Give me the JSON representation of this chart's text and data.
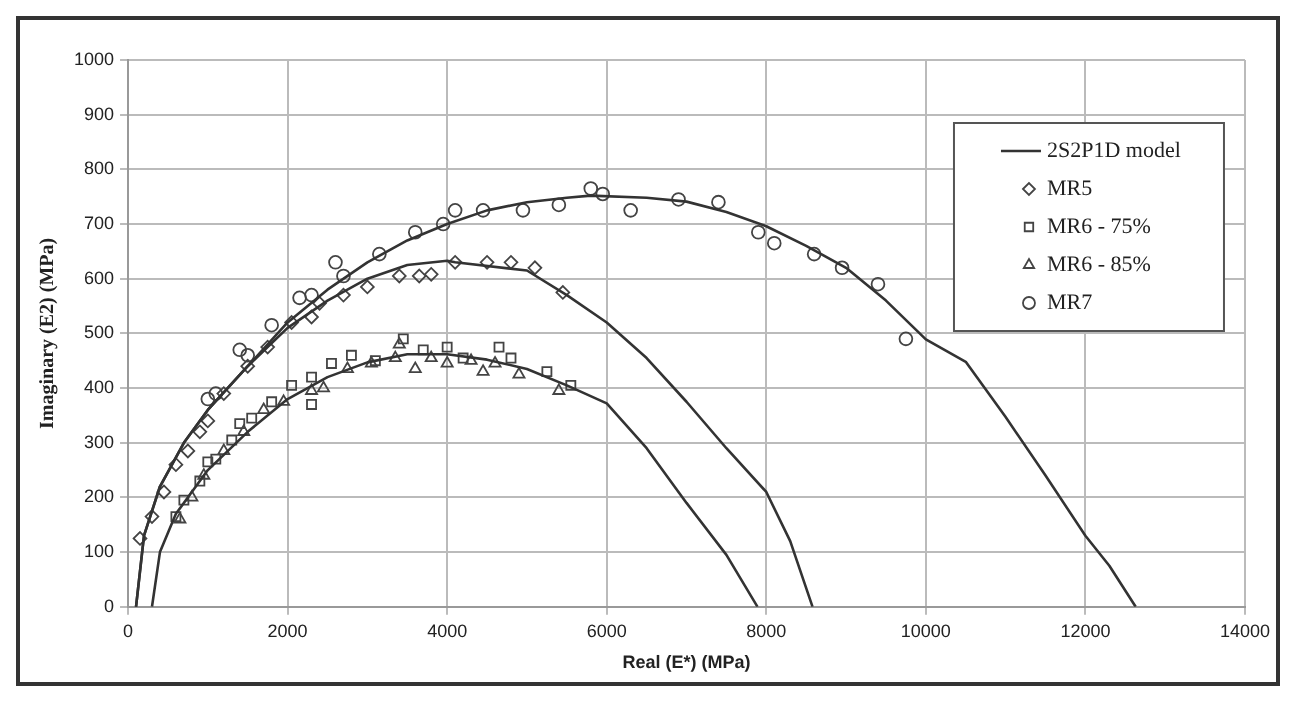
{
  "chart_data": {
    "type": "line",
    "xlabel": "Real (E*) (MPa)",
    "ylabel": "Imaginary (E2) (MPa)",
    "xlim": [
      0,
      14000
    ],
    "xticks": [
      0,
      2000,
      4000,
      6000,
      8000,
      10000,
      12000,
      14000
    ],
    "ylim": [
      0,
      1000
    ],
    "yticks": [
      0,
      100,
      200,
      300,
      400,
      500,
      600,
      700,
      800,
      900,
      1000
    ],
    "grid": true,
    "legend": "top right",
    "series": [
      {
        "name": "2S2P1D model",
        "type": "line",
        "color": "#333333",
        "marker": "none",
        "x": [
          100,
          200,
          400,
          700,
          1000,
          1500,
          2000,
          2500,
          3000,
          3500,
          4000,
          4500,
          5000,
          5500,
          5800,
          6500,
          7000,
          7500,
          8000,
          8500,
          9000,
          9500,
          10000,
          10500,
          11000,
          11500,
          12000,
          12300,
          12630
        ],
        "values": [
          0,
          130,
          220,
          300,
          360,
          440,
          520,
          580,
          630,
          670,
          700,
          725,
          740,
          748,
          752,
          748,
          741,
          722,
          696,
          660,
          620,
          560,
          489,
          448,
          347,
          240,
          130,
          75,
          0
        ]
      },
      {
        "type": "line",
        "color": "#333333",
        "marker": "none",
        "x": [
          100,
          200,
          400,
          700,
          1000,
          1500,
          2000,
          2500,
          3000,
          3500,
          4000,
          4100,
          5000,
          5500,
          6000,
          6500,
          7000,
          7500,
          8000,
          8300,
          8580
        ],
        "values": [
          0,
          130,
          220,
          300,
          360,
          440,
          510,
          560,
          600,
          625,
          633,
          630,
          615,
          570,
          520,
          455,
          375,
          290,
          210,
          120,
          0
        ]
      },
      {
        "type": "line",
        "color": "#333333",
        "marker": "none",
        "x": [
          300,
          400,
          600,
          1000,
          1500,
          2000,
          2500,
          3000,
          3500,
          4000,
          4500,
          5000,
          5500,
          6000,
          6500,
          7000,
          7500,
          7890
        ],
        "values": [
          0,
          100,
          170,
          250,
          320,
          380,
          420,
          447,
          462,
          462,
          452,
          435,
          405,
          372,
          290,
          190,
          95,
          0
        ]
      },
      {
        "name": "MR5",
        "type": "scatter",
        "color": "#444444",
        "marker": "diamond",
        "x": [
          150,
          300,
          450,
          600,
          750,
          900,
          1000,
          1200,
          1500,
          1750,
          2050,
          2300,
          2400,
          2700,
          3000,
          3400,
          3650,
          3800,
          4100,
          4500,
          4800,
          5100,
          5450
        ],
        "values": [
          125,
          165,
          210,
          260,
          285,
          320,
          340,
          390,
          440,
          475,
          520,
          530,
          555,
          570,
          585,
          605,
          605,
          608,
          630,
          630,
          630,
          620,
          575
        ]
      },
      {
        "name": "MR6 - 75%",
        "type": "scatter",
        "color": "#444444",
        "marker": "square",
        "x": [
          600,
          700,
          900,
          1000,
          1100,
          1300,
          1400,
          1550,
          1800,
          2050,
          2300,
          2300,
          2550,
          2800,
          3100,
          3450,
          3700,
          4000,
          4200,
          4650,
          4800,
          5250,
          5550
        ],
        "values": [
          165,
          195,
          230,
          265,
          270,
          305,
          335,
          345,
          375,
          405,
          420,
          370,
          445,
          460,
          450,
          490,
          470,
          475,
          455,
          475,
          455,
          430,
          405
        ]
      },
      {
        "name": "MR6 - 85%",
        "type": "scatter",
        "color": "#444444",
        "marker": "triangle",
        "x": [
          650,
          800,
          950,
          1200,
          1450,
          1700,
          1950,
          2300,
          2450,
          2750,
          3050,
          3350,
          3400,
          3600,
          3800,
          4000,
          4300,
          4450,
          4600,
          4900,
          5400
        ],
        "values": [
          160,
          200,
          240,
          285,
          320,
          360,
          375,
          395,
          400,
          435,
          445,
          455,
          480,
          435,
          455,
          445,
          450,
          430,
          445,
          425,
          395
        ]
      },
      {
        "name": "MR7",
        "type": "scatter",
        "color": "#444444",
        "marker": "circle",
        "x": [
          1000,
          1100,
          1400,
          1500,
          1800,
          2150,
          2300,
          2600,
          2700,
          3150,
          3600,
          3950,
          4100,
          4450,
          4950,
          5400,
          5800,
          5950,
          6300,
          6900,
          7400,
          7900,
          8100,
          8600,
          8950,
          9400,
          9750
        ],
        "values": [
          380,
          390,
          470,
          460,
          515,
          565,
          570,
          630,
          605,
          645,
          685,
          700,
          725,
          725,
          725,
          735,
          765,
          755,
          725,
          745,
          740,
          685,
          665,
          645,
          620,
          590,
          490
        ]
      }
    ]
  }
}
